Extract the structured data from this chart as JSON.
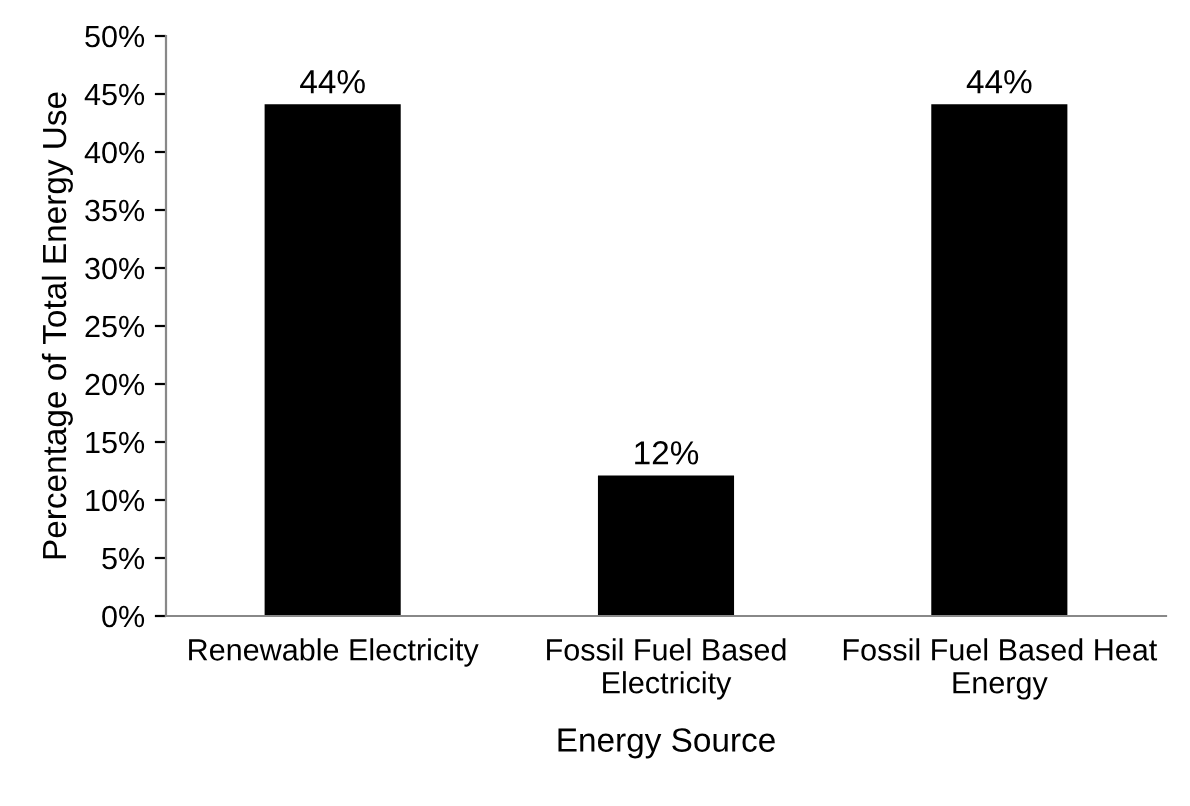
{
  "chart_data": {
    "type": "bar",
    "xlabel": "Energy Source",
    "ylabel": "Percentage of Total Energy Use",
    "categories": [
      "Renewable Electricity",
      "Fossil Fuel Based\nElectricity",
      "Fossil Fuel Based Heat\nEnergy"
    ],
    "values": [
      44,
      12,
      44
    ],
    "color": "#000000",
    "value_labels": [
      "44%",
      "12%",
      "44%"
    ],
    "ylim": [
      0,
      50
    ],
    "yticks": [
      {
        "value": 0,
        "label": "0%"
      },
      {
        "value": 5,
        "label": "5%"
      },
      {
        "value": 10,
        "label": "10%"
      },
      {
        "value": 15,
        "label": "15%"
      },
      {
        "value": 20,
        "label": "20%"
      },
      {
        "value": 25,
        "label": "25%"
      },
      {
        "value": 30,
        "label": "30%"
      },
      {
        "value": 35,
        "label": "35%"
      },
      {
        "value": 40,
        "label": "40%"
      },
      {
        "value": 45,
        "label": "45%"
      },
      {
        "value": 50,
        "label": "50%"
      }
    ],
    "grid": false,
    "legend": false
  }
}
